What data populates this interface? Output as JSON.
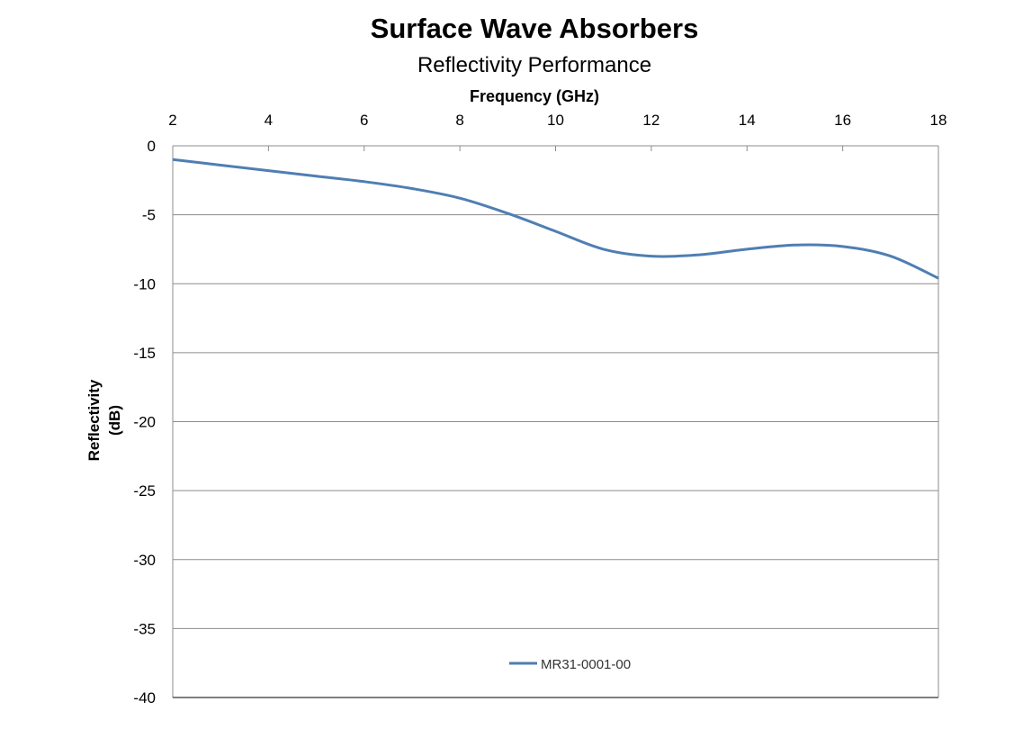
{
  "chart_data": {
    "type": "line",
    "title": "Surface Wave Absorbers",
    "subtitle": "Reflectivity Performance",
    "xlabel": "Frequency (GHz)",
    "ylabel_lines": [
      "Reflectivity",
      "(dB)"
    ],
    "x_ticks": [
      2,
      4,
      6,
      8,
      10,
      12,
      14,
      16,
      18
    ],
    "y_ticks": [
      0,
      -5,
      -10,
      -15,
      -20,
      -25,
      -30,
      -35,
      -40
    ],
    "xlim": [
      2,
      18
    ],
    "ylim": [
      -40,
      0
    ],
    "x_axis_position": "top",
    "grid": "horizontal",
    "legend_position": "bottom-center",
    "series": [
      {
        "name": "MR31-0001-00",
        "color": "#4f7eb3",
        "x": [
          2,
          3,
          4,
          5,
          6,
          7,
          8,
          9,
          10,
          11,
          12,
          13,
          14,
          15,
          16,
          17,
          18
        ],
        "y": [
          -1.0,
          -1.4,
          -1.8,
          -2.2,
          -2.6,
          -3.1,
          -3.8,
          -4.9,
          -6.2,
          -7.5,
          -8.0,
          -7.9,
          -7.5,
          -7.2,
          -7.3,
          -8.0,
          -9.6
        ]
      }
    ]
  }
}
